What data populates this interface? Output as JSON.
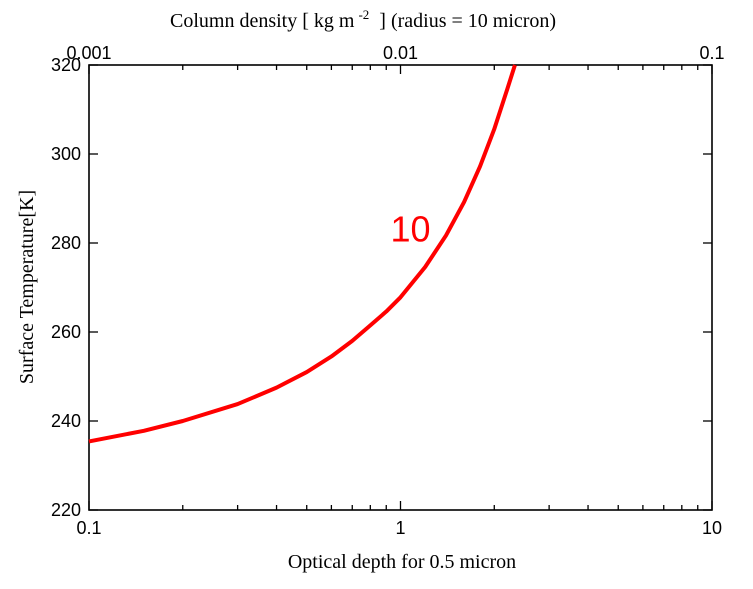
{
  "chart_data": {
    "type": "line",
    "top_axis": {
      "label_main": "Column density [ kg m",
      "label_sup": "-2",
      "label_tail": "] (radius = 10 micron)",
      "scale": "log",
      "range": [
        0.001,
        0.1
      ],
      "ticks": [
        {
          "value": 0.001,
          "label": "0.001"
        },
        {
          "value": 0.01,
          "label": "0.01"
        },
        {
          "value": 0.1,
          "label": "0.1"
        }
      ]
    },
    "x_axis": {
      "label": "Optical depth for 0.5 micron",
      "scale": "log",
      "range": [
        0.1,
        10
      ],
      "ticks": [
        {
          "value": 0.1,
          "label": "0.1"
        },
        {
          "value": 1,
          "label": "1"
        },
        {
          "value": 10,
          "label": "10"
        }
      ]
    },
    "y_axis": {
      "label": "Surface Temperature[K]",
      "range": [
        220,
        320
      ],
      "ticks": [
        {
          "value": 220,
          "label": "220"
        },
        {
          "value": 240,
          "label": "240"
        },
        {
          "value": 260,
          "label": "260"
        },
        {
          "value": 280,
          "label": "280"
        },
        {
          "value": 300,
          "label": "300"
        },
        {
          "value": 320,
          "label": "320"
        }
      ]
    },
    "grid": false,
    "series": [
      {
        "color": "#ff0000",
        "points": [
          {
            "x": 0.1,
            "y": 235.4
          },
          {
            "x": 0.15,
            "y": 237.8
          },
          {
            "x": 0.2,
            "y": 240.0
          },
          {
            "x": 0.3,
            "y": 243.8
          },
          {
            "x": 0.4,
            "y": 247.5
          },
          {
            "x": 0.5,
            "y": 251.0
          },
          {
            "x": 0.6,
            "y": 254.5
          },
          {
            "x": 0.7,
            "y": 258.0
          },
          {
            "x": 0.8,
            "y": 261.5
          },
          {
            "x": 0.9,
            "y": 264.6
          },
          {
            "x": 1.0,
            "y": 267.8
          },
          {
            "x": 1.2,
            "y": 274.6
          },
          {
            "x": 1.4,
            "y": 281.7
          },
          {
            "x": 1.6,
            "y": 289.2
          },
          {
            "x": 1.8,
            "y": 297.2
          },
          {
            "x": 2.0,
            "y": 305.6
          },
          {
            "x": 2.2,
            "y": 314.5
          },
          {
            "x": 2.33,
            "y": 320.0
          }
        ]
      }
    ],
    "annotations": [
      {
        "text": "10",
        "x": 1.0,
        "y": 283,
        "color": "#ff0000"
      }
    ]
  }
}
